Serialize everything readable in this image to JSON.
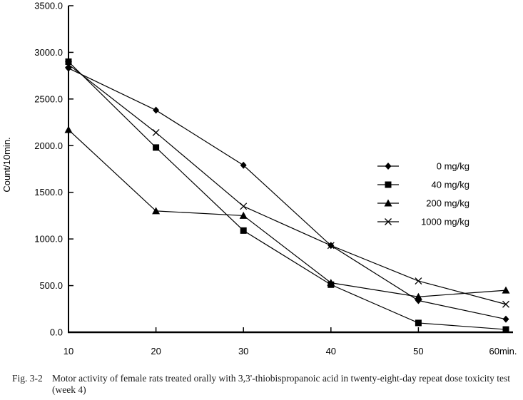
{
  "figure": {
    "caption_label": "Fig. 3-2",
    "caption_text": "Motor activity of female rats treated orally with 3,3'-thiobispropanoic acid in twenty-eight-day repeat dose toxicity test (week 4)"
  },
  "chart_data": {
    "type": "line",
    "title": "",
    "xlabel": "",
    "ylabel": "Count/10min.",
    "x": [
      10,
      20,
      30,
      40,
      50,
      60
    ],
    "x_tick_labels": [
      "10",
      "20",
      "30",
      "40",
      "50",
      "60min."
    ],
    "ylim": [
      0,
      3500
    ],
    "ytick_step": 500,
    "y_tick_labels": [
      "0.0",
      "500.0",
      "1000.0",
      "1500.0",
      "2000.0",
      "2500.0",
      "3000.0",
      "3500.0"
    ],
    "grid": false,
    "legend_position": "right-middle",
    "line_color": "#000000",
    "background_color": "#ffffff",
    "series": [
      {
        "name": "0 mg/kg",
        "marker": "diamond",
        "values": [
          2830,
          2380,
          1790,
          930,
          340,
          140
        ]
      },
      {
        "name": "40 mg/kg",
        "marker": "square",
        "values": [
          2900,
          1980,
          1090,
          510,
          100,
          30
        ]
      },
      {
        "name": "200 mg/kg",
        "marker": "triangle",
        "values": [
          2170,
          1300,
          1250,
          530,
          380,
          450
        ]
      },
      {
        "name": "1000 mg/kg",
        "marker": "x",
        "values": [
          2870,
          2140,
          1350,
          930,
          550,
          300
        ]
      }
    ]
  }
}
